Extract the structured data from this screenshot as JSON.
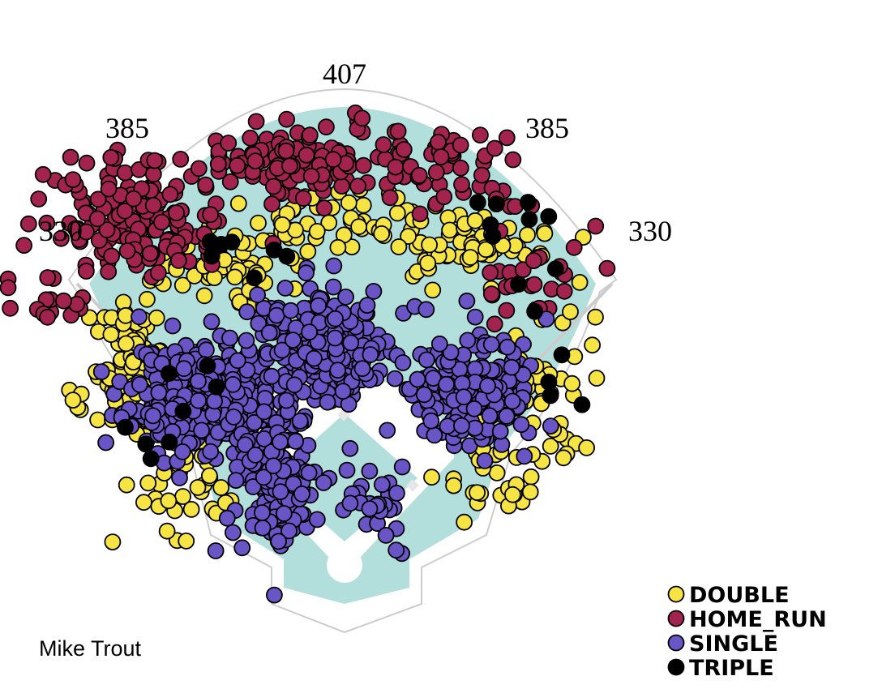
{
  "chart_data": {
    "type": "scatter",
    "title": "",
    "caption": "Mike Trout",
    "field_distances": [
      "330",
      "385",
      "407",
      "385",
      "330"
    ],
    "legend": [
      {
        "name": "DOUBLE",
        "color": "#f5e444"
      },
      {
        "name": "HOME_RUN",
        "color": "#a3234f"
      },
      {
        "name": "SINGLE",
        "color": "#6a55c7"
      },
      {
        "name": "TRIPLE",
        "color": "#000000"
      }
    ],
    "coordinate_note": "hit locations in field units: x = feet toward right field (negative = left field), y = feet from home plate toward center field",
    "clusters": [
      {
        "event": "SINGLE",
        "count": 360,
        "cx": -155,
        "cy": 180,
        "sx": 40,
        "sy": 30,
        "seed": 11
      },
      {
        "event": "SINGLE",
        "count": 230,
        "cx": -20,
        "cy": 230,
        "sx": 40,
        "sy": 35,
        "seed": 12
      },
      {
        "event": "SINGLE",
        "count": 180,
        "cx": 145,
        "cy": 185,
        "sx": 35,
        "sy": 30,
        "seed": 13
      },
      {
        "event": "SINGLE",
        "count": 170,
        "cx": -75,
        "cy": 90,
        "sx": 22,
        "sy": 40,
        "seed": 14
      },
      {
        "event": "SINGLE",
        "count": 30,
        "cx": 40,
        "cy": 70,
        "sx": 20,
        "sy": 28,
        "seed": 15
      },
      {
        "event": "DOUBLE",
        "count": 95,
        "cx": -235,
        "cy": 200,
        "sx": 22,
        "sy": 38,
        "seed": 21
      },
      {
        "event": "DOUBLE",
        "count": 55,
        "cx": -140,
        "cy": 320,
        "sx": 40,
        "sy": 20,
        "seed": 22
      },
      {
        "event": "DOUBLE",
        "count": 60,
        "cx": 0,
        "cy": 370,
        "sx": 55,
        "sy": 15,
        "seed": 23
      },
      {
        "event": "DOUBLE",
        "count": 60,
        "cx": 140,
        "cy": 340,
        "sx": 40,
        "sy": 18,
        "seed": 24
      },
      {
        "event": "DOUBLE",
        "count": 40,
        "cx": 230,
        "cy": 180,
        "sx": 25,
        "sy": 45,
        "seed": 25
      },
      {
        "event": "DOUBLE",
        "count": 35,
        "cx": -170,
        "cy": 90,
        "sx": 35,
        "sy": 35,
        "seed": 26
      },
      {
        "event": "DOUBLE",
        "count": 30,
        "cx": 150,
        "cy": 100,
        "sx": 35,
        "sy": 35,
        "seed": 27
      },
      {
        "event": "HOME_RUN",
        "count": 150,
        "cx": -230,
        "cy": 375,
        "sx": 55,
        "sy": 35,
        "seed": 31
      },
      {
        "event": "HOME_RUN",
        "count": 110,
        "cx": -50,
        "cy": 440,
        "sx": 60,
        "sy": 22,
        "seed": 32
      },
      {
        "event": "HOME_RUN",
        "count": 40,
        "cx": 110,
        "cy": 430,
        "sx": 35,
        "sy": 22,
        "seed": 33
      },
      {
        "event": "HOME_RUN",
        "count": 30,
        "cx": 205,
        "cy": 320,
        "sx": 35,
        "sy": 40,
        "seed": 34
      },
      {
        "event": "HOME_RUN",
        "count": 15,
        "cx": -330,
        "cy": 285,
        "sx": 30,
        "sy": 35,
        "seed": 35
      },
      {
        "event": "TRIPLE",
        "count": 7,
        "cx": -130,
        "cy": 330,
        "sx": 40,
        "sy": 20,
        "seed": 41
      },
      {
        "event": "TRIPLE",
        "count": 8,
        "cx": 140,
        "cy": 370,
        "sx": 45,
        "sy": 25,
        "seed": 42
      },
      {
        "event": "TRIPLE",
        "count": 8,
        "cx": -210,
        "cy": 170,
        "sx": 45,
        "sy": 70,
        "seed": 43
      },
      {
        "event": "TRIPLE",
        "count": 6,
        "cx": 230,
        "cy": 200,
        "sx": 25,
        "sy": 50,
        "seed": 44
      }
    ]
  }
}
